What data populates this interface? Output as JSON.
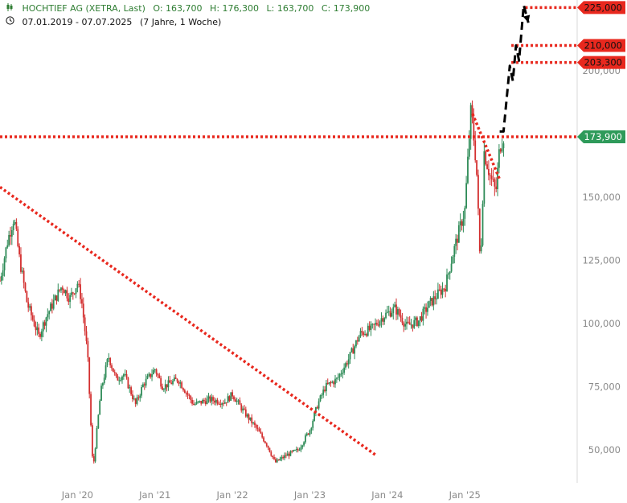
{
  "header": {
    "instrument": "HOCHTIEF AG (XETRA, Last)",
    "open": "O: 163,700",
    "high": "H: 176,300",
    "low": "L: 163,700",
    "close": "C: 173,900",
    "period": "07.01.2019 - 07.07.2025",
    "period_detail": "(7 Jahre, 1 Woche)",
    "chart_icon": "candlestick-icon",
    "clock_icon": "clock-icon"
  },
  "colors": {
    "up": "#2e8b57",
    "down": "#d32f2f",
    "level": "#e8281e",
    "current": "#2e9a5a",
    "axis_text": "#8a8a8a"
  },
  "chart_data": {
    "type": "candlestick",
    "y_axis": {
      "ticks": [
        50,
        75,
        100,
        125,
        150,
        175,
        200
      ],
      "tick_labels": [
        "50,000",
        "75,000",
        "100,000",
        "125,000",
        "150,000",
        "175,000",
        "200,000"
      ],
      "ylim": [
        37,
        228
      ]
    },
    "x_axis": {
      "ticks": [
        2020,
        2021,
        2022,
        2023,
        2024,
        2025
      ],
      "tick_labels": [
        "Jan '20",
        "Jan '21",
        "Jan '22",
        "Jan '23",
        "Jan '24",
        "Jan '25"
      ],
      "xlim": [
        2019.0,
        2026.45
      ]
    },
    "price_path": [
      [
        2019.0,
        117
      ],
      [
        2019.1,
        133
      ],
      [
        2019.18,
        142
      ],
      [
        2019.25,
        126
      ],
      [
        2019.35,
        108
      ],
      [
        2019.5,
        95
      ],
      [
        2019.6,
        103
      ],
      [
        2019.8,
        115
      ],
      [
        2019.9,
        110
      ],
      [
        2020.0,
        116
      ],
      [
        2020.05,
        110
      ],
      [
        2020.13,
        88
      ],
      [
        2020.2,
        42
      ],
      [
        2020.3,
        73
      ],
      [
        2020.4,
        87
      ],
      [
        2020.5,
        78
      ],
      [
        2020.6,
        80
      ],
      [
        2020.75,
        68
      ],
      [
        2020.85,
        76
      ],
      [
        2021.0,
        82
      ],
      [
        2021.1,
        75
      ],
      [
        2021.3,
        78
      ],
      [
        2021.5,
        68
      ],
      [
        2021.7,
        70
      ],
      [
        2021.9,
        69
      ],
      [
        2022.0,
        72
      ],
      [
        2022.15,
        65
      ],
      [
        2022.3,
        59
      ],
      [
        2022.45,
        52
      ],
      [
        2022.55,
        45
      ],
      [
        2022.7,
        48
      ],
      [
        2022.85,
        50
      ],
      [
        2023.0,
        58
      ],
      [
        2023.1,
        68
      ],
      [
        2023.2,
        75
      ],
      [
        2023.35,
        78
      ],
      [
        2023.5,
        86
      ],
      [
        2023.65,
        96
      ],
      [
        2023.8,
        98
      ],
      [
        2023.95,
        103
      ],
      [
        2024.1,
        106
      ],
      [
        2024.25,
        99
      ],
      [
        2024.4,
        101
      ],
      [
        2024.55,
        108
      ],
      [
        2024.75,
        115
      ],
      [
        2024.85,
        128
      ],
      [
        2025.0,
        145
      ],
      [
        2025.08,
        185
      ],
      [
        2025.15,
        162
      ],
      [
        2025.2,
        122
      ],
      [
        2025.25,
        168
      ],
      [
        2025.33,
        158
      ],
      [
        2025.4,
        152
      ],
      [
        2025.45,
        170
      ],
      [
        2025.5,
        174
      ]
    ],
    "levels": [
      {
        "value": 225,
        "label": "225,000",
        "style": "dotted",
        "kind": "target"
      },
      {
        "value": 210,
        "label": "210,000",
        "style": "dotted",
        "kind": "target"
      },
      {
        "value": 203.3,
        "label": "203,300",
        "style": "dotted",
        "kind": "target"
      },
      {
        "value": 173.9,
        "label": "173,900",
        "style": "dotted",
        "kind": "current"
      }
    ],
    "trendlines": [
      {
        "from": [
          2019.0,
          154
        ],
        "to": [
          2023.85,
          48
        ],
        "style": "dotted"
      },
      {
        "from": [
          2025.1,
          183
        ],
        "to": [
          2025.45,
          157
        ],
        "style": "dotted"
      }
    ],
    "projection": {
      "style": "dashed-arrow",
      "points": [
        [
          2025.45,
          176
        ],
        [
          2025.5,
          176
        ],
        [
          2025.58,
          202
        ],
        [
          2025.62,
          196
        ],
        [
          2025.66,
          210
        ],
        [
          2025.7,
          204
        ],
        [
          2025.76,
          226
        ],
        [
          2025.82,
          219
        ]
      ]
    }
  }
}
